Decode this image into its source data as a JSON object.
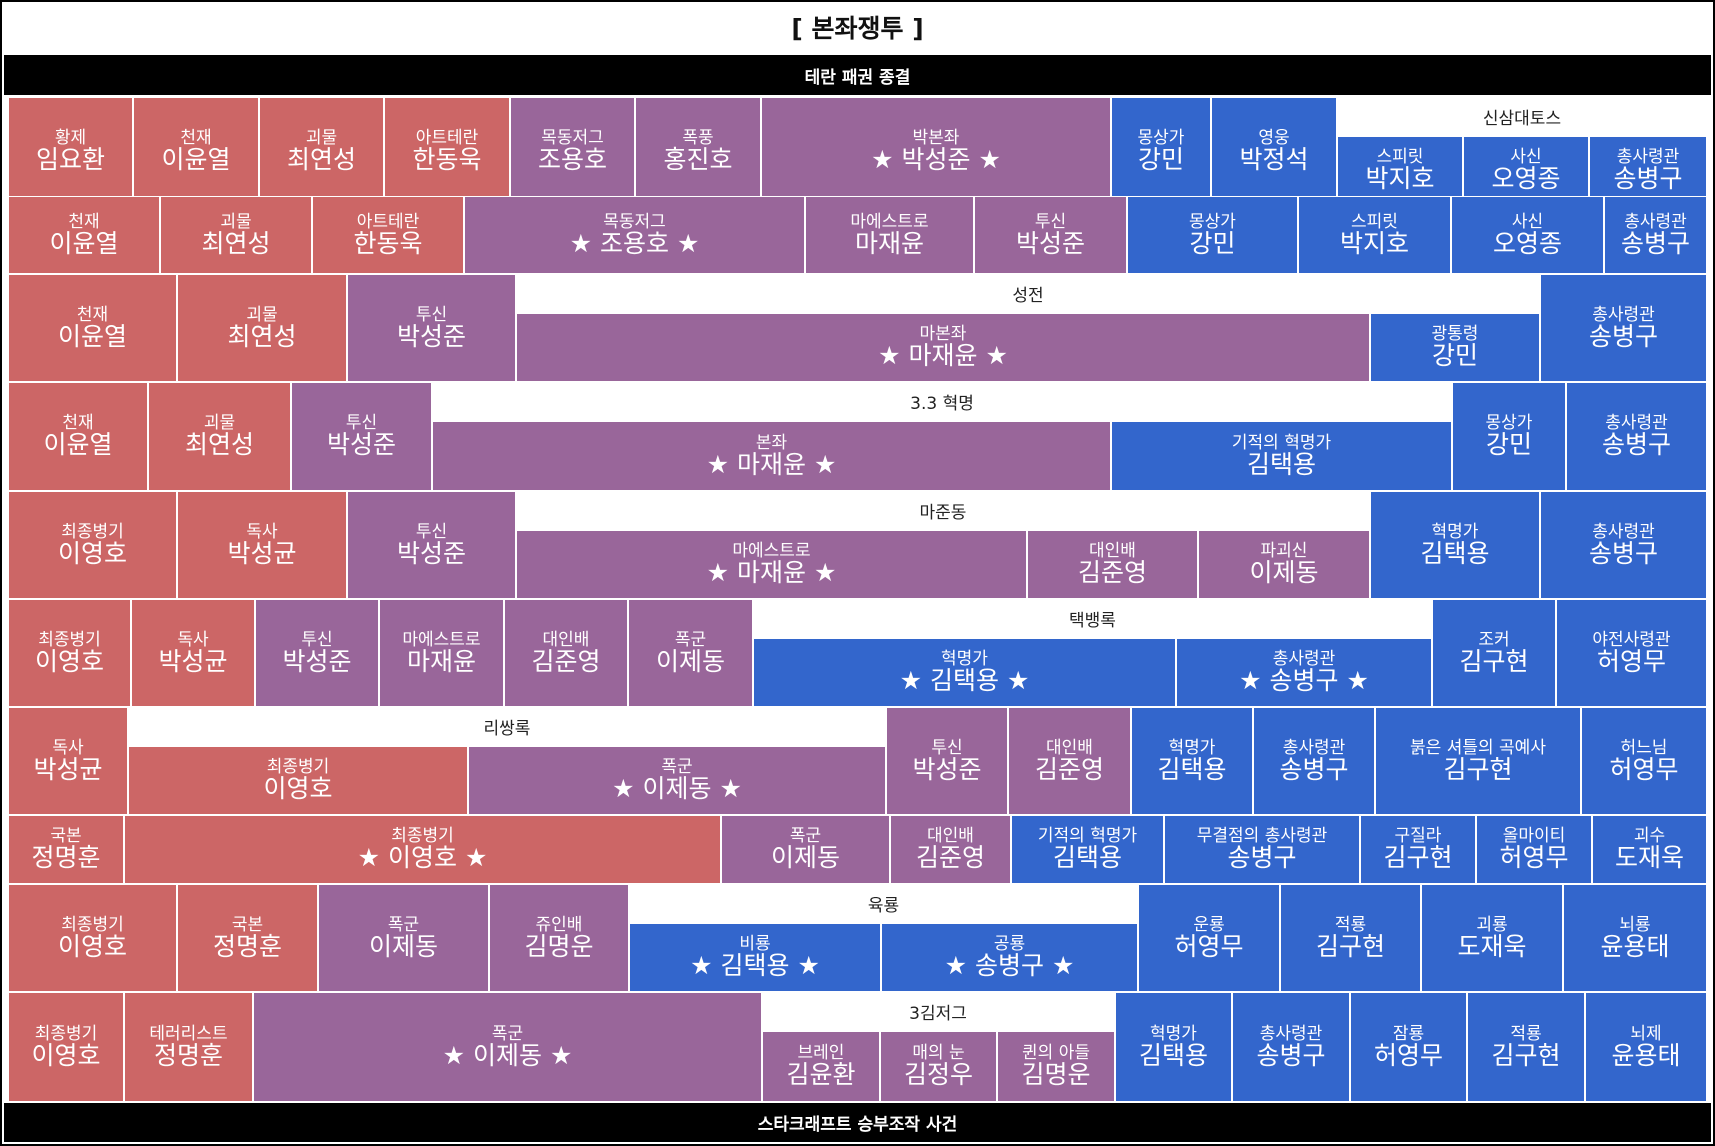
{
  "page_title": "[ 본좌쟁투 ]",
  "top_bar": "테란 패권 종결",
  "bottom_bar": "스타크래프트 승부조작 사건",
  "palette": {
    "terran": "#cc6666",
    "protoss": "#99669a",
    "zerg": "#3366cc"
  },
  "rows": [
    {
      "eras": [
        {
          "label": "신삼대토스"
        }
      ],
      "cells": [
        {
          "title": "황제",
          "name": "임요환",
          "race": "T"
        },
        {
          "title": "천재",
          "name": "이윤열",
          "race": "T"
        },
        {
          "title": "괴물",
          "name": "최연성",
          "race": "T"
        },
        {
          "title": "아트테란",
          "name": "한동욱",
          "race": "T"
        },
        {
          "title": "목동저그",
          "name": "조용호",
          "race": "P"
        },
        {
          "title": "폭풍",
          "name": "홍진호",
          "race": "P"
        },
        {
          "title": "박본좌",
          "name": "★ 박성준 ★",
          "race": "P"
        },
        {
          "title": "몽상가",
          "name": "강민",
          "race": "Z"
        },
        {
          "title": "영웅",
          "name": "박정석",
          "race": "Z"
        },
        {
          "title": "스피릿",
          "name": "박지호",
          "race": "Z"
        },
        {
          "title": "사신",
          "name": "오영종",
          "race": "Z"
        },
        {
          "title": "총사령관",
          "name": "송병구",
          "race": "Z"
        }
      ]
    },
    {
      "eras": [],
      "cells": [
        {
          "title": "천재",
          "name": "이윤열",
          "race": "T"
        },
        {
          "title": "괴물",
          "name": "최연성",
          "race": "T"
        },
        {
          "title": "아트테란",
          "name": "한동욱",
          "race": "T"
        },
        {
          "title": "목동저그",
          "name": "★ 조용호 ★",
          "race": "P"
        },
        {
          "title": "마에스트로",
          "name": "마재윤",
          "race": "P"
        },
        {
          "title": "투신",
          "name": "박성준",
          "race": "P"
        },
        {
          "title": "몽상가",
          "name": "강민",
          "race": "Z"
        },
        {
          "title": "스피릿",
          "name": "박지호",
          "race": "Z"
        },
        {
          "title": "사신",
          "name": "오영종",
          "race": "Z"
        },
        {
          "title": "총사령관",
          "name": "송병구",
          "race": "Z"
        }
      ]
    },
    {
      "eras": [
        {
          "label": "성전"
        }
      ],
      "cells": [
        {
          "title": "천재",
          "name": "이윤열",
          "race": "T"
        },
        {
          "title": "괴물",
          "name": "최연성",
          "race": "T"
        },
        {
          "title": "투신",
          "name": "박성준",
          "race": "P"
        },
        {
          "title": "마본좌",
          "name": "★ 마재윤 ★",
          "race": "P"
        },
        {
          "title": "광통령",
          "name": "강민",
          "race": "Z"
        },
        {
          "title": "총사령관",
          "name": "송병구",
          "race": "Z"
        }
      ]
    },
    {
      "eras": [
        {
          "label": "3.3 혁명"
        }
      ],
      "cells": [
        {
          "title": "천재",
          "name": "이윤열",
          "race": "T"
        },
        {
          "title": "괴물",
          "name": "최연성",
          "race": "T"
        },
        {
          "title": "투신",
          "name": "박성준",
          "race": "P"
        },
        {
          "title": "본좌",
          "name": "★ 마재윤 ★",
          "race": "P"
        },
        {
          "title": "기적의 혁명가",
          "name": "김택용",
          "race": "Z"
        },
        {
          "title": "몽상가",
          "name": "강민",
          "race": "Z"
        },
        {
          "title": "총사령관",
          "name": "송병구",
          "race": "Z"
        }
      ]
    },
    {
      "eras": [
        {
          "label": "마준동"
        }
      ],
      "cells": [
        {
          "title": "최종병기",
          "name": "이영호",
          "race": "T"
        },
        {
          "title": "독사",
          "name": "박성균",
          "race": "T"
        },
        {
          "title": "투신",
          "name": "박성준",
          "race": "P"
        },
        {
          "title": "마에스트로",
          "name": "★ 마재윤 ★",
          "race": "P"
        },
        {
          "title": "대인배",
          "name": "김준영",
          "race": "P"
        },
        {
          "title": "파괴신",
          "name": "이제동",
          "race": "P"
        },
        {
          "title": "혁명가",
          "name": "김택용",
          "race": "Z"
        },
        {
          "title": "총사령관",
          "name": "송병구",
          "race": "Z"
        }
      ]
    },
    {
      "eras": [
        {
          "label": "택뱅록"
        }
      ],
      "cells": [
        {
          "title": "최종병기",
          "name": "이영호",
          "race": "T"
        },
        {
          "title": "독사",
          "name": "박성균",
          "race": "T"
        },
        {
          "title": "투신",
          "name": "박성준",
          "race": "P"
        },
        {
          "title": "마에스트로",
          "name": "마재윤",
          "race": "P"
        },
        {
          "title": "대인배",
          "name": "김준영",
          "race": "P"
        },
        {
          "title": "폭군",
          "name": "이제동",
          "race": "P"
        },
        {
          "title": "혁명가",
          "name": "★ 김택용 ★",
          "race": "Z"
        },
        {
          "title": "총사령관",
          "name": "★ 송병구 ★",
          "race": "Z"
        },
        {
          "title": "조커",
          "name": "김구현",
          "race": "Z"
        },
        {
          "title": "야전사령관",
          "name": "허영무",
          "race": "Z"
        }
      ]
    },
    {
      "eras": [
        {
          "label": "리쌍록"
        }
      ],
      "cells": [
        {
          "title": "독사",
          "name": "박성균",
          "race": "T"
        },
        {
          "title": "최종병기",
          "name": "이영호",
          "race": "T"
        },
        {
          "title": "폭군",
          "name": "★ 이제동 ★",
          "race": "P"
        },
        {
          "title": "투신",
          "name": "박성준",
          "race": "P"
        },
        {
          "title": "대인배",
          "name": "김준영",
          "race": "P"
        },
        {
          "title": "혁명가",
          "name": "김택용",
          "race": "Z"
        },
        {
          "title": "총사령관",
          "name": "송병구",
          "race": "Z"
        },
        {
          "title": "붉은 셔틀의 곡예사",
          "name": "김구현",
          "race": "Z"
        },
        {
          "title": "허느님",
          "name": "허영무",
          "race": "Z"
        }
      ]
    },
    {
      "eras": [],
      "cells": [
        {
          "title": "국본",
          "name": "정명훈",
          "race": "T"
        },
        {
          "title": "최종병기",
          "name": "★ 이영호 ★",
          "race": "T"
        },
        {
          "title": "폭군",
          "name": "이제동",
          "race": "P"
        },
        {
          "title": "대인배",
          "name": "김준영",
          "race": "P"
        },
        {
          "title": "기적의 혁명가",
          "name": "김택용",
          "race": "Z"
        },
        {
          "title": "무결점의 총사령관",
          "name": "송병구",
          "race": "Z"
        },
        {
          "title": "구질라",
          "name": "김구현",
          "race": "Z"
        },
        {
          "title": "올마이티",
          "name": "허영무",
          "race": "Z"
        },
        {
          "title": "괴수",
          "name": "도재욱",
          "race": "Z"
        }
      ]
    },
    {
      "eras": [
        {
          "label": "육룡"
        }
      ],
      "cells": [
        {
          "title": "최종병기",
          "name": "이영호",
          "race": "T"
        },
        {
          "title": "국본",
          "name": "정명훈",
          "race": "T"
        },
        {
          "title": "폭군",
          "name": "이제동",
          "race": "P"
        },
        {
          "title": "쥬인배",
          "name": "김명운",
          "race": "P"
        },
        {
          "title": "비룡",
          "name": "★ 김택용 ★",
          "race": "Z"
        },
        {
          "title": "공룡",
          "name": "★ 송병구 ★",
          "race": "Z"
        },
        {
          "title": "운룡",
          "name": "허영무",
          "race": "Z"
        },
        {
          "title": "적룡",
          "name": "김구현",
          "race": "Z"
        },
        {
          "title": "괴룡",
          "name": "도재욱",
          "race": "Z"
        },
        {
          "title": "뇌룡",
          "name": "윤용태",
          "race": "Z"
        }
      ]
    },
    {
      "eras": [
        {
          "label": "3김저그"
        }
      ],
      "cells": [
        {
          "title": "최종병기",
          "name": "이영호",
          "race": "T"
        },
        {
          "title": "테러리스트",
          "name": "정명훈",
          "race": "T"
        },
        {
          "title": "폭군",
          "name": "★ 이제동 ★",
          "race": "P"
        },
        {
          "title": "브레인",
          "name": "김윤환",
          "race": "P"
        },
        {
          "title": "매의 눈",
          "name": "김정우",
          "race": "P"
        },
        {
          "title": "퀸의 아들",
          "name": "김명운",
          "race": "P"
        },
        {
          "title": "혁명가",
          "name": "김택용",
          "race": "Z"
        },
        {
          "title": "총사령관",
          "name": "송병구",
          "race": "Z"
        },
        {
          "title": "잠룡",
          "name": "허영무",
          "race": "Z"
        },
        {
          "title": "적룡",
          "name": "김구현",
          "race": "Z"
        },
        {
          "title": "뇌제",
          "name": "윤용태",
          "race": "Z"
        }
      ]
    }
  ]
}
